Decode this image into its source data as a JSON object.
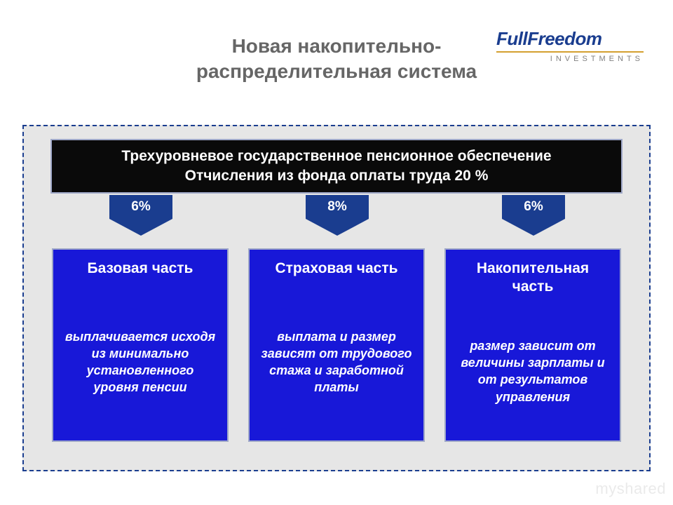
{
  "title_line1": "Новая накопительно-",
  "title_line2": "распределительная система",
  "logo": {
    "main": "FullFreedom",
    "sub": "INVESTMENTS",
    "main_color": "#1a3d8f",
    "line_color": "#d4a030",
    "sub_color": "#808080"
  },
  "top_box": {
    "line1": "Трехуровневое государственное пенсионное обеспечение",
    "line2": "Отчисления из фонда оплаты труда  20 %",
    "bg": "#0a0a0a",
    "text_color": "#ffffff",
    "border_color": "#9fa8c8",
    "fontsize": 21
  },
  "arrows": {
    "bg": "#1a3d8f",
    "text_color": "#ffffff",
    "labels": [
      "6%",
      "8%",
      "6%"
    ],
    "fontsize": 19
  },
  "columns": {
    "bg": "#1818d8",
    "text_color": "#ffffff",
    "border_color": "#9fa8c8",
    "title_fontsize": 21,
    "desc_fontsize": 18,
    "items": [
      {
        "title": "Базовая часть",
        "desc": "выплачивается исходя из минимально установленного уровня пенсии"
      },
      {
        "title": "Страховая часть",
        "desc": "выплата и размер зависят от трудового стажа и заработной платы"
      },
      {
        "title": "Накопительная часть",
        "desc": "размер зависит от величины зарплаты и от результатов управления"
      }
    ]
  },
  "frame": {
    "bg": "#e6e6e6",
    "border_color": "#1a3d8f"
  },
  "title_color": "#666666",
  "watermark": "myshared"
}
